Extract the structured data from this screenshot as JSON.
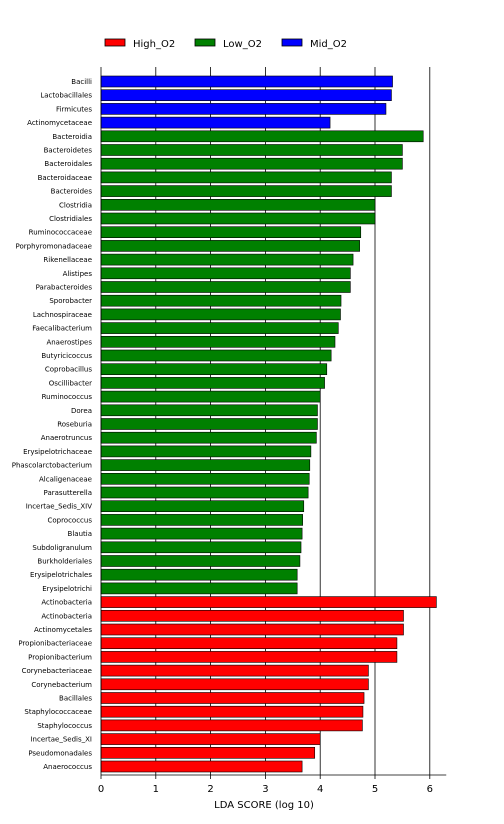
{
  "chart_data": {
    "type": "bar",
    "orientation": "horizontal",
    "xlabel": "LDA SCORE (log 10)",
    "xlim": [
      0,
      6.3
    ],
    "xticks": [
      0,
      1,
      2,
      3,
      4,
      5,
      6
    ],
    "grid": "vertical",
    "legend_position": "top",
    "series": [
      {
        "name": "High_O2",
        "color": "#ff0000"
      },
      {
        "name": "Low_O2",
        "color": "#008000"
      },
      {
        "name": "Mid_O2",
        "color": "#0000ff"
      }
    ],
    "bars": [
      {
        "label": "Bacilli",
        "value": 5.32,
        "group": "Mid_O2"
      },
      {
        "label": "Lactobacillales",
        "value": 5.3,
        "group": "Mid_O2"
      },
      {
        "label": "Firmicutes",
        "value": 5.2,
        "group": "Mid_O2"
      },
      {
        "label": "Actinomycetaceae",
        "value": 4.18,
        "group": "Mid_O2"
      },
      {
        "label": "Bacteroidia",
        "value": 5.88,
        "group": "Low_O2"
      },
      {
        "label": "Bacteroidetes",
        "value": 5.5,
        "group": "Low_O2"
      },
      {
        "label": "Bacteroidales",
        "value": 5.5,
        "group": "Low_O2"
      },
      {
        "label": "Bacteroidaceae",
        "value": 5.3,
        "group": "Low_O2"
      },
      {
        "label": "Bacteroides",
        "value": 5.3,
        "group": "Low_O2"
      },
      {
        "label": "Clostridia",
        "value": 5.0,
        "group": "Low_O2"
      },
      {
        "label": "Clostridiales",
        "value": 5.0,
        "group": "Low_O2"
      },
      {
        "label": "Ruminococcaceae",
        "value": 4.74,
        "group": "Low_O2"
      },
      {
        "label": "Porphyromonadaceae",
        "value": 4.72,
        "group": "Low_O2"
      },
      {
        "label": "Rikenellaceae",
        "value": 4.6,
        "group": "Low_O2"
      },
      {
        "label": "Alistipes",
        "value": 4.55,
        "group": "Low_O2"
      },
      {
        "label": "Parabacteroides",
        "value": 4.55,
        "group": "Low_O2"
      },
      {
        "label": "Sporobacter",
        "value": 4.38,
        "group": "Low_O2"
      },
      {
        "label": "Lachnospiraceae",
        "value": 4.37,
        "group": "Low_O2"
      },
      {
        "label": "Faecalibacterium",
        "value": 4.33,
        "group": "Low_O2"
      },
      {
        "label": "Anaerostipes",
        "value": 4.27,
        "group": "Low_O2"
      },
      {
        "label": "Butyricicoccus",
        "value": 4.2,
        "group": "Low_O2"
      },
      {
        "label": "Coprobacillus",
        "value": 4.12,
        "group": "Low_O2"
      },
      {
        "label": "Oscillibacter",
        "value": 4.08,
        "group": "Low_O2"
      },
      {
        "label": "Ruminococcus",
        "value": 4.0,
        "group": "Low_O2"
      },
      {
        "label": "Dorea",
        "value": 3.95,
        "group": "Low_O2"
      },
      {
        "label": "Roseburia",
        "value": 3.95,
        "group": "Low_O2"
      },
      {
        "label": "Anaerotruncus",
        "value": 3.93,
        "group": "Low_O2"
      },
      {
        "label": "Erysipelotrichaceae",
        "value": 3.83,
        "group": "Low_O2"
      },
      {
        "label": "Phascolarctobacterium",
        "value": 3.81,
        "group": "Low_O2"
      },
      {
        "label": "Alcaligenaceae",
        "value": 3.8,
        "group": "Low_O2"
      },
      {
        "label": "Parasutterella",
        "value": 3.78,
        "group": "Low_O2"
      },
      {
        "label": "Incertae_Sedis_XIV",
        "value": 3.7,
        "group": "Low_O2"
      },
      {
        "label": "Coprococcus",
        "value": 3.68,
        "group": "Low_O2"
      },
      {
        "label": "Blautia",
        "value": 3.67,
        "group": "Low_O2"
      },
      {
        "label": "Subdoligranulum",
        "value": 3.65,
        "group": "Low_O2"
      },
      {
        "label": "Burkholderiales",
        "value": 3.63,
        "group": "Low_O2"
      },
      {
        "label": "Erysipelotrichales",
        "value": 3.58,
        "group": "Low_O2"
      },
      {
        "label": "Erysipelotrichi",
        "value": 3.58,
        "group": "Low_O2"
      },
      {
        "label": "Actinobacteria",
        "value": 6.12,
        "group": "High_O2"
      },
      {
        "label": "Actinobacteria",
        "value": 5.52,
        "group": "High_O2"
      },
      {
        "label": "Actinomycetales",
        "value": 5.52,
        "group": "High_O2"
      },
      {
        "label": "Propionibacteriaceae",
        "value": 5.4,
        "group": "High_O2"
      },
      {
        "label": "Propionibacterium",
        "value": 5.4,
        "group": "High_O2"
      },
      {
        "label": "Corynebacteriaceae",
        "value": 4.88,
        "group": "High_O2"
      },
      {
        "label": "Corynebacterium",
        "value": 4.88,
        "group": "High_O2"
      },
      {
        "label": "Bacillales",
        "value": 4.8,
        "group": "High_O2"
      },
      {
        "label": "Staphylococcaceae",
        "value": 4.78,
        "group": "High_O2"
      },
      {
        "label": "Staphylococcus",
        "value": 4.77,
        "group": "High_O2"
      },
      {
        "label": "Incertae_Sedis_XI",
        "value": 4.0,
        "group": "High_O2"
      },
      {
        "label": "Pseudomonadales",
        "value": 3.9,
        "group": "High_O2"
      },
      {
        "label": "Anaerococcus",
        "value": 3.67,
        "group": "High_O2"
      }
    ]
  }
}
